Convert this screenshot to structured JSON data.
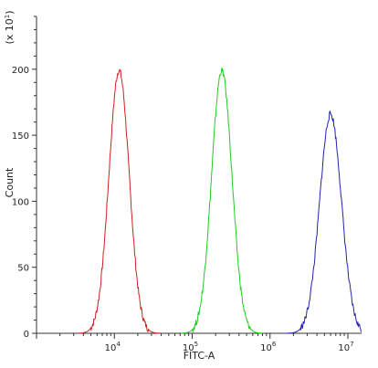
{
  "chart_data": {
    "type": "line",
    "title": "",
    "xlabel": "FITC-A",
    "ylabel": "Count",
    "y_multiplier_label": "(x 10",
    "y_multiplier_exp": "1",
    "y_multiplier_close": ")",
    "x_scale": "log",
    "xlim": [
      1000,
      15000000
    ],
    "ylim": [
      0,
      240
    ],
    "y_ticks": [
      0,
      50,
      100,
      150,
      200
    ],
    "x_ticks": [
      {
        "value": 10000,
        "base": "10",
        "exp": "4"
      },
      {
        "value": 100000,
        "base": "10",
        "exp": "5"
      },
      {
        "value": 1000000,
        "base": "10",
        "exp": "6"
      },
      {
        "value": 10000000,
        "base": "10",
        "exp": "7"
      }
    ],
    "grid": false,
    "legend": "none",
    "series": [
      {
        "color": "#cc2222",
        "peak_x": 11500,
        "peak_y": 199,
        "width_decades": 0.13
      },
      {
        "color": "#22cc22",
        "peak_x": 240000,
        "peak_y": 199,
        "width_decades": 0.13
      },
      {
        "color": "#2222aa",
        "peak_x": 6000000,
        "peak_y": 166,
        "width_decades": 0.14
      }
    ]
  }
}
